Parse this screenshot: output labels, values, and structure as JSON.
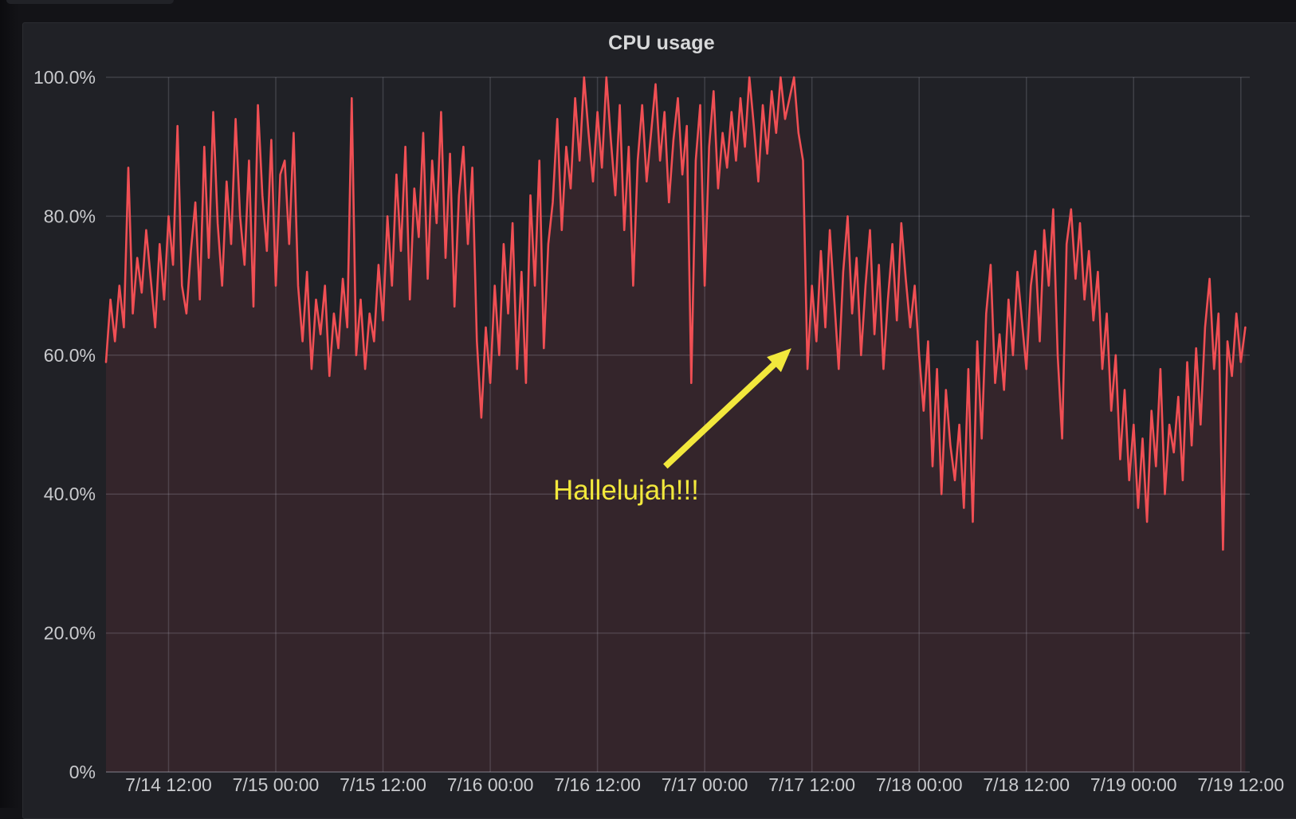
{
  "panel": {
    "title": "CPU usage"
  },
  "colors": {
    "page_bg": "#131317",
    "panel_bg": "#202126",
    "series_red": "#F04F54",
    "fill_red_rgba": "rgba(240,79,84,0.10)",
    "grid_rgba": "rgba(204,204,220,0.18)",
    "axis_rgba": "rgba(204,204,220,0.28)",
    "tick_text": "#c9cacd",
    "annotation_yellow": "#F2E83C"
  },
  "chart_data": {
    "type": "area",
    "title": "CPU usage",
    "unit": "percent",
    "grid": true,
    "legend": "none",
    "x_axis": {
      "range_hours": [
        0,
        128
      ],
      "ticks": [
        {
          "hour": 7,
          "label": "7/14 12:00"
        },
        {
          "hour": 19,
          "label": "7/15 00:00"
        },
        {
          "hour": 31,
          "label": "7/15 12:00"
        },
        {
          "hour": 43,
          "label": "7/16 00:00"
        },
        {
          "hour": 55,
          "label": "7/16 12:00"
        },
        {
          "hour": 67,
          "label": "7/17 00:00"
        },
        {
          "hour": 79,
          "label": "7/17 12:00"
        },
        {
          "hour": 91,
          "label": "7/18 00:00"
        },
        {
          "hour": 103,
          "label": "7/18 12:00"
        },
        {
          "hour": 115,
          "label": "7/19 00:00"
        },
        {
          "hour": 127,
          "label": "7/19 12:00"
        }
      ]
    },
    "y_axis": {
      "range": [
        0,
        100
      ],
      "ticks": [
        {
          "pct": 0,
          "label": "0%"
        },
        {
          "pct": 20,
          "label": "20.0%"
        },
        {
          "pct": 40,
          "label": "40.0%"
        },
        {
          "pct": 60,
          "label": "60.0%"
        },
        {
          "pct": 80,
          "label": "80.0%"
        },
        {
          "pct": 100,
          "label": "100.0%"
        }
      ]
    },
    "series": [
      {
        "name": "CPU usage",
        "color": "#F04F54",
        "fill_opacity": 0.1,
        "t0_hours": 0,
        "dt_hours": 0.5,
        "values": [
          59,
          68,
          62,
          70,
          64,
          87,
          66,
          74,
          69,
          78,
          71,
          64,
          76,
          68,
          80,
          73,
          93,
          70,
          66,
          75,
          82,
          68,
          90,
          74,
          95,
          79,
          70,
          85,
          76,
          94,
          80,
          73,
          88,
          67,
          96,
          83,
          75,
          91,
          70,
          86,
          88,
          76,
          92,
          70,
          62,
          72,
          58,
          68,
          63,
          70,
          57,
          66,
          61,
          71,
          64,
          97,
          60,
          68,
          58,
          66,
          62,
          73,
          65,
          80,
          70,
          86,
          75,
          90,
          68,
          84,
          77,
          92,
          71,
          88,
          79,
          95,
          74,
          89,
          67,
          83,
          90,
          76,
          87,
          62,
          51,
          64,
          56,
          70,
          60,
          76,
          66,
          79,
          58,
          72,
          56,
          83,
          70,
          88,
          61,
          76,
          82,
          94,
          78,
          90,
          84,
          97,
          88,
          100,
          92,
          85,
          95,
          87,
          100,
          91,
          83,
          96,
          78,
          90,
          70,
          88,
          96,
          85,
          92,
          99,
          88,
          95,
          82,
          91,
          97,
          86,
          93,
          56,
          88,
          96,
          70,
          90,
          98,
          84,
          92,
          87,
          95,
          88,
          97,
          90,
          100,
          93,
          85,
          96,
          89,
          98,
          92,
          100,
          94,
          97,
          100,
          92,
          88,
          58,
          70,
          62,
          75,
          64,
          78,
          68,
          58,
          72,
          80,
          66,
          74,
          60,
          70,
          78,
          63,
          73,
          58,
          68,
          76,
          65,
          79,
          71,
          64,
          70,
          60,
          52,
          62,
          44,
          58,
          40,
          55,
          47,
          42,
          50,
          38,
          58,
          36,
          62,
          48,
          66,
          73,
          56,
          63,
          55,
          68,
          60,
          72,
          65,
          58,
          70,
          75,
          62,
          78,
          70,
          81,
          60,
          48,
          76,
          81,
          71,
          79,
          68,
          75,
          65,
          72,
          58,
          66,
          52,
          60,
          45,
          55,
          42,
          50,
          38,
          48,
          36,
          52,
          44,
          58,
          40,
          50,
          46,
          54,
          42,
          59,
          47,
          61,
          50,
          64,
          71,
          58,
          66,
          32,
          62,
          57,
          66,
          59,
          64
        ]
      }
    ],
    "annotation": {
      "text": "Hallelujah!!!",
      "color": "#F2E83C",
      "text_anchor": {
        "hour": 58.2,
        "pct": 40.5
      },
      "arrow_tail": {
        "hour": 62.6,
        "pct": 44.0
      },
      "arrow_tip": {
        "hour": 76.7,
        "pct": 61.0
      }
    }
  }
}
